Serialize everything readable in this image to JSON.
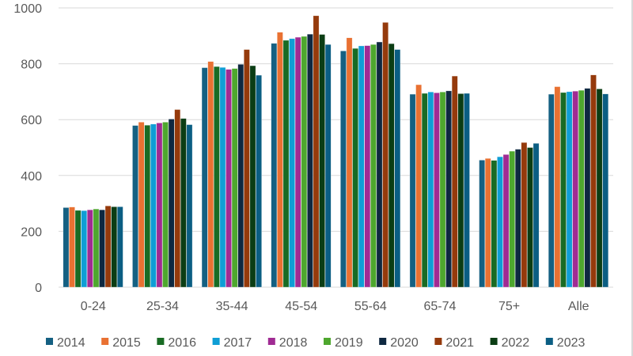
{
  "chart_data": {
    "type": "bar",
    "title": "",
    "xlabel": "",
    "ylabel": "",
    "ylim": [
      0,
      1000
    ],
    "yticks": [
      0,
      200,
      400,
      600,
      800,
      1000
    ],
    "grid": true,
    "legend_position": "bottom",
    "categories": [
      "0-24",
      "25-34",
      "35-44",
      "45-54",
      "55-64",
      "65-74",
      "75+",
      "Alle"
    ],
    "series": [
      {
        "name": "2014",
        "color": "#156082",
        "values": [
          285,
          579,
          786,
          873,
          846,
          691,
          455,
          691
        ]
      },
      {
        "name": "2015",
        "color": "#E97132",
        "values": [
          287,
          591,
          808,
          913,
          893,
          725,
          461,
          718
        ]
      },
      {
        "name": "2016",
        "color": "#196B24",
        "values": [
          275,
          580,
          790,
          884,
          855,
          694,
          454,
          697
        ]
      },
      {
        "name": "2017",
        "color": "#0F9ED5",
        "values": [
          274,
          584,
          787,
          890,
          864,
          699,
          467,
          700
        ]
      },
      {
        "name": "2018",
        "color": "#A02B93",
        "values": [
          277,
          588,
          780,
          895,
          865,
          696,
          475,
          702
        ]
      },
      {
        "name": "2019",
        "color": "#4EA72E",
        "values": [
          280,
          591,
          783,
          898,
          869,
          699,
          487,
          705
        ]
      },
      {
        "name": "2020",
        "color": "#0E2841",
        "values": [
          277,
          602,
          798,
          906,
          878,
          703,
          494,
          712
        ]
      },
      {
        "name": "2021",
        "color": "#953A0C",
        "values": [
          291,
          636,
          851,
          972,
          948,
          756,
          518,
          760
        ]
      },
      {
        "name": "2022",
        "color": "#0B3D14",
        "values": [
          288,
          604,
          793,
          905,
          872,
          693,
          500,
          710
        ]
      },
      {
        "name": "2023",
        "color": "#0B5E83",
        "values": [
          288,
          582,
          759,
          869,
          851,
          694,
          515,
          692
        ]
      }
    ]
  }
}
